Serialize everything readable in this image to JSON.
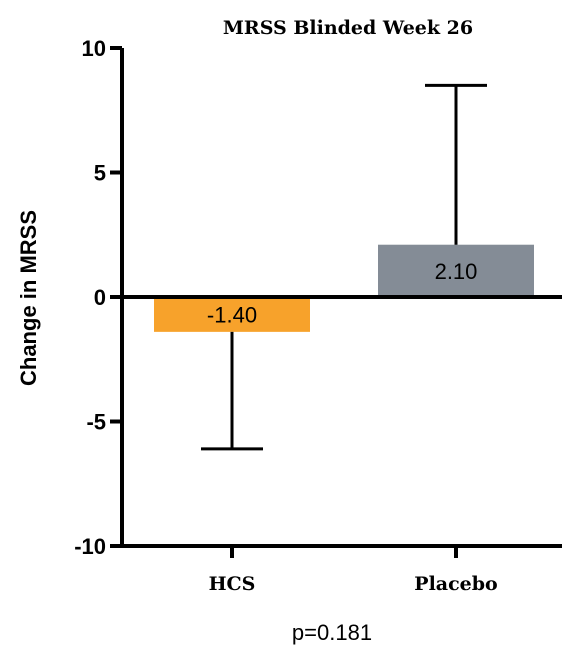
{
  "chart_data": {
    "type": "bar",
    "title": "MRSS Blinded Week 26",
    "ylabel": "Change in MRSS",
    "xlabel": "",
    "ylim": [
      -10,
      10
    ],
    "yticks": [
      10,
      5,
      0,
      -5,
      -10
    ],
    "grid": false,
    "categories": [
      "HCS",
      "Placebo"
    ],
    "values": [
      -1.4,
      2.1
    ],
    "data_labels": [
      "-1.40",
      "2.10"
    ],
    "error_bars": [
      {
        "low": -6.1,
        "high": -1.4
      },
      {
        "low": 2.1,
        "high": 8.5
      }
    ],
    "colors": [
      "#F7A22B",
      "#848C96"
    ],
    "annotation": "p=0.181"
  }
}
